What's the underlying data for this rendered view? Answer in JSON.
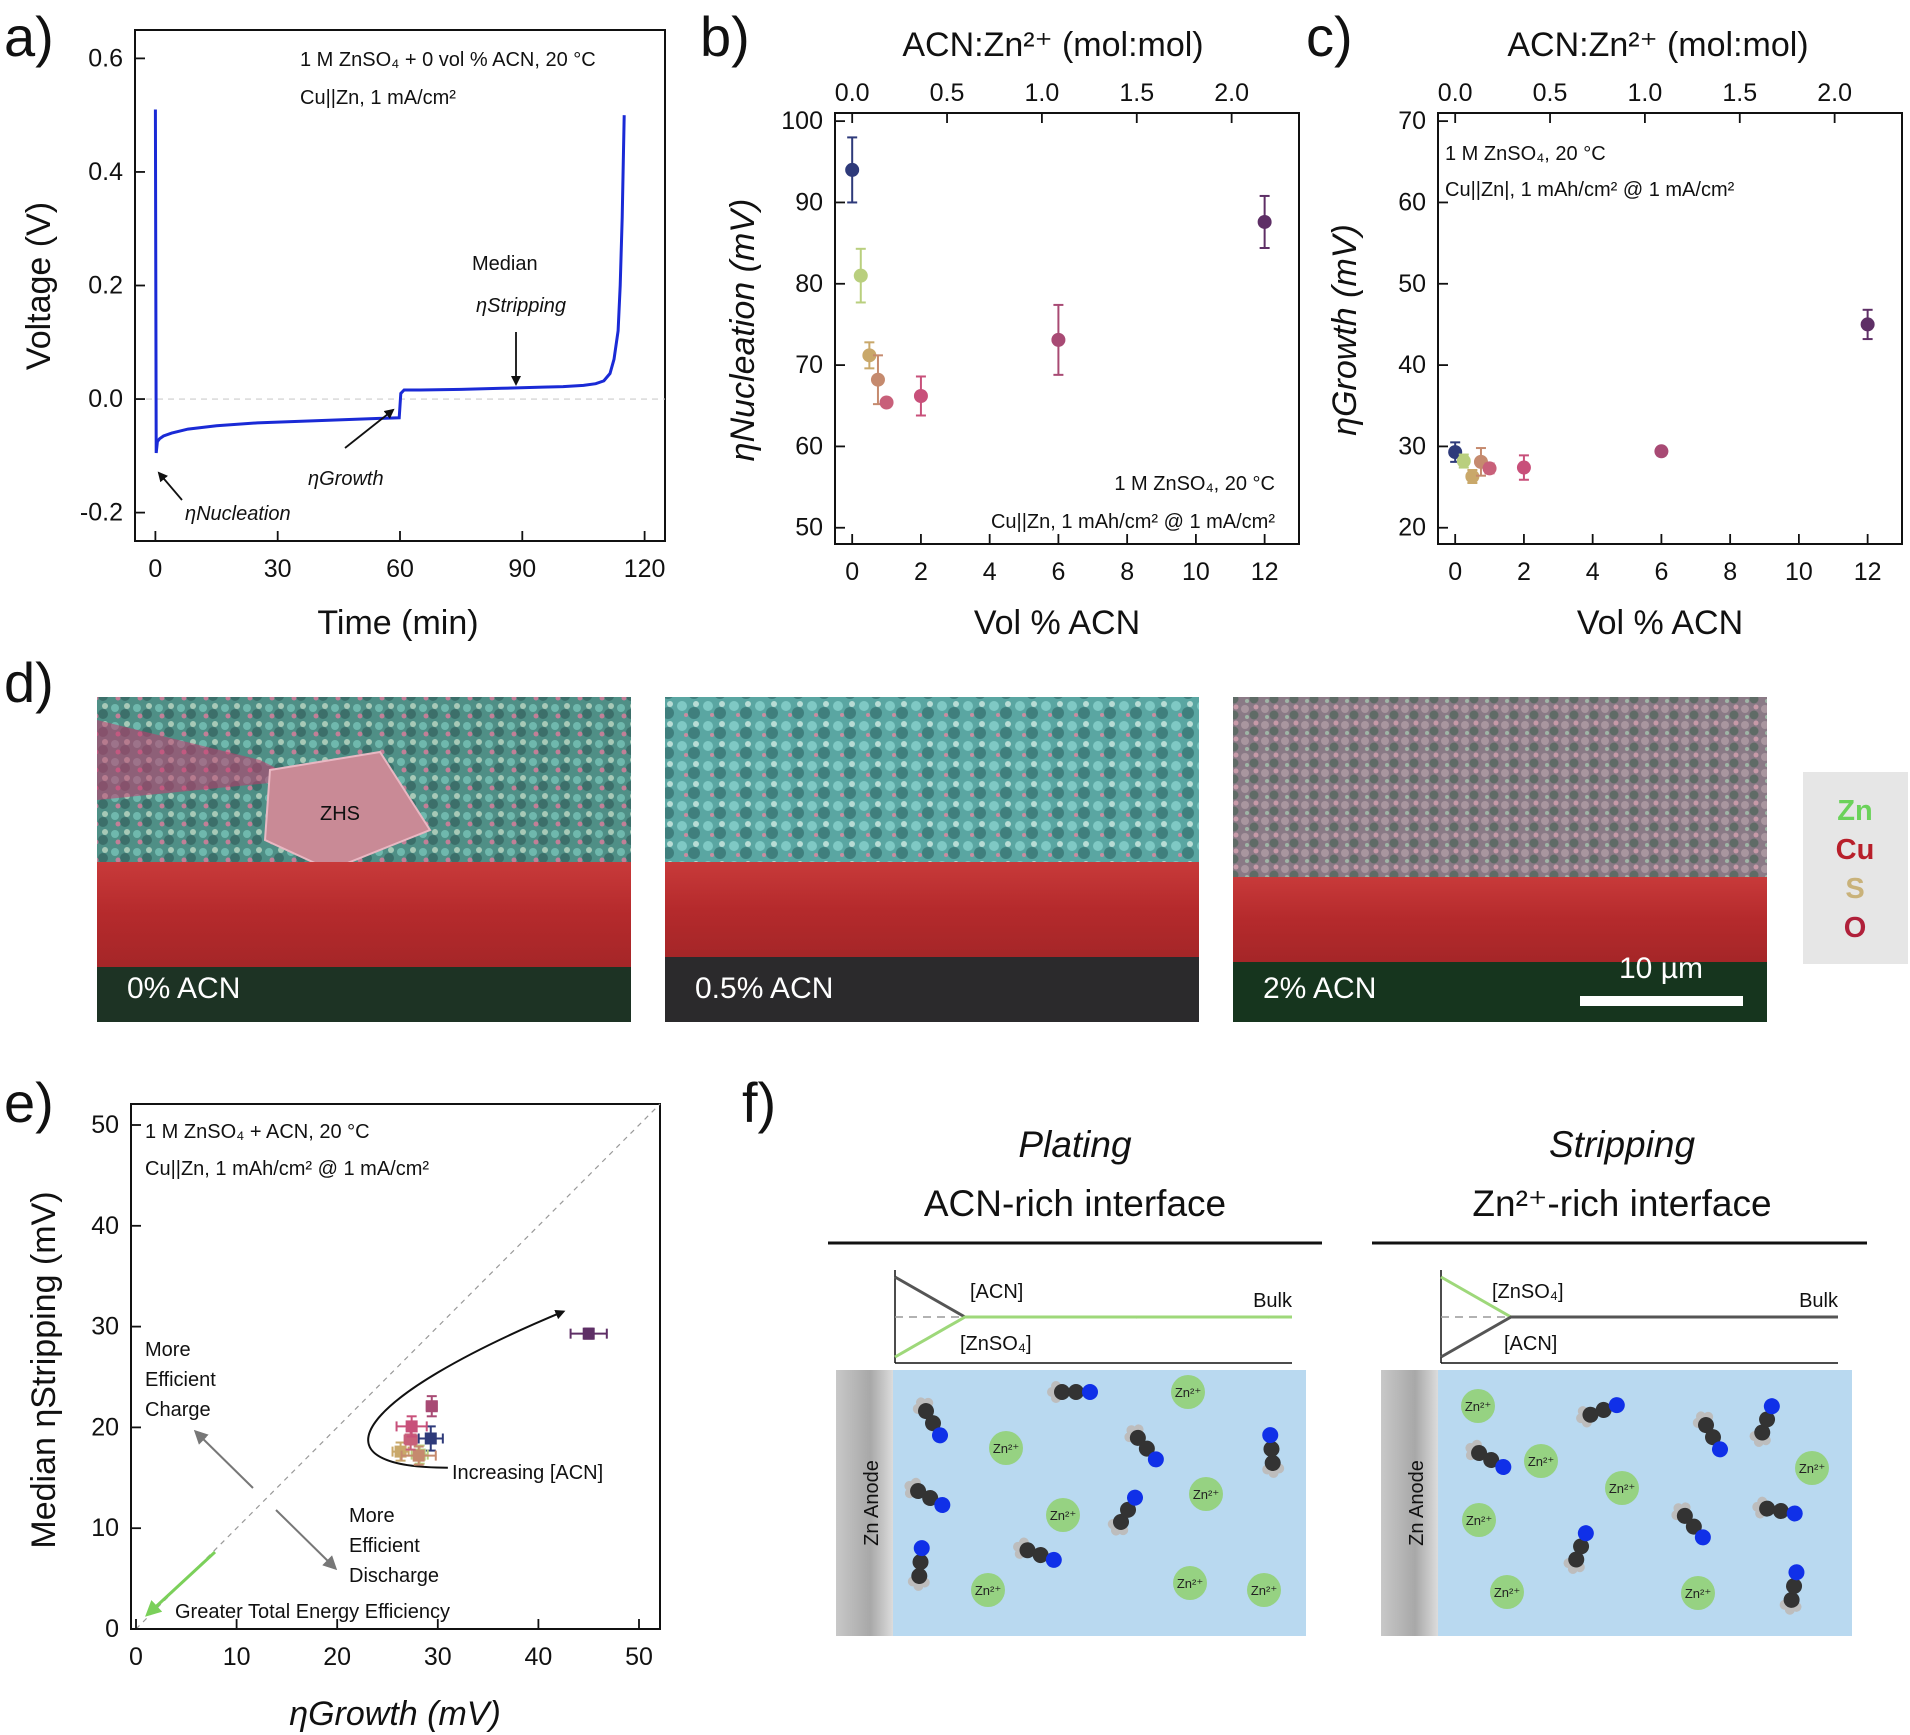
{
  "colors": {
    "curve": "#1a2ad6",
    "acn0": "#2e3a7a",
    "acn025": "#b9cf7e",
    "acn05": "#c9a86a",
    "acn075": "#c58a6e",
    "acn1": "#c8607a",
    "acn2": "#c8507a",
    "acn6": "#a84a74",
    "acn12": "#5e2f66",
    "green": "#7bd05a",
    "blue": "#1030e8",
    "sem_bg": "#e8e8e8",
    "interface_bg": "#b9d9f0"
  },
  "panels": {
    "a": {
      "letter": "a)",
      "xlabel": "Time (min)",
      "ylabel": "Voltage (V)",
      "xticks": [
        "0",
        "30",
        "60",
        "90",
        "120"
      ],
      "yticks": [
        "-0.2",
        "0.0",
        "0.2",
        "0.4",
        "0.6"
      ],
      "note1": "1 M ZnSO₄ + 0 vol % ACN, 20 °C",
      "note2": "Cu||Zn, 1 mA/cm²",
      "median_label": "Median",
      "eta_stripping": "ηStripping",
      "eta_growth": "ηGrowth",
      "eta_nucleation": "ηNucleation"
    },
    "b": {
      "letter": "b)",
      "top_xlabel": "ACN:Zn²⁺ (mol:mol)",
      "top_xticks": [
        "0.0",
        "0.5",
        "1.0",
        "1.5",
        "2.0"
      ],
      "xlabel": "Vol % ACN",
      "ylabel": "ηNucleation (mV)",
      "xticks": [
        "0",
        "2",
        "4",
        "6",
        "8",
        "10",
        "12"
      ],
      "yticks": [
        "50",
        "60",
        "70",
        "80",
        "90",
        "100"
      ],
      "note1": "1 M ZnSO₄, 20 °C",
      "note2": "Cu||Zn, 1 mAh/cm² @ 1 mA/cm²"
    },
    "c": {
      "letter": "c)",
      "top_xlabel": "ACN:Zn²⁺ (mol:mol)",
      "top_xticks": [
        "0.0",
        "0.5",
        "1.0",
        "1.5",
        "2.0"
      ],
      "xlabel": "Vol % ACN",
      "ylabel": "ηGrowth (mV)",
      "xticks": [
        "0",
        "2",
        "4",
        "6",
        "8",
        "10",
        "12"
      ],
      "yticks": [
        "20",
        "30",
        "40",
        "50",
        "60",
        "70"
      ],
      "note1": "1 M ZnSO₄, 20 °C",
      "note2": "Cu||Zn|, 1 mAh/cm² @ 1 mA/cm²"
    },
    "d": {
      "letter": "d)",
      "images": [
        "0% ACN",
        "0.5% ACN",
        "2% ACN"
      ],
      "zhs": "ZHS",
      "scale_bar": "10 µm",
      "legend": [
        "Zn",
        "Cu",
        "S",
        "O"
      ]
    },
    "e": {
      "letter": "e)",
      "xlabel": "ηGrowth (mV)",
      "ylabel": "Median ηStripping (mV)",
      "xticks": [
        "0",
        "10",
        "20",
        "30",
        "40",
        "50"
      ],
      "yticks": [
        "0",
        "10",
        "20",
        "30",
        "40",
        "50"
      ],
      "note1": "1 M ZnSO₄ + ACN, 20 °C",
      "note2": "Cu||Zn, 1 mAh/cm² @ 1 mA/cm²",
      "more_charge": [
        "More",
        "Efficient",
        "Charge"
      ],
      "more_discharge": [
        "More",
        "Efficient",
        "Discharge"
      ],
      "increasing": "Increasing [ACN]",
      "greater": "Greater Total Energy Efficiency"
    },
    "f": {
      "letter": "f)",
      "left_mode": "Plating",
      "left_title": "ACN-rich interface",
      "right_mode": "Stripping",
      "right_title": "Zn²⁺-rich interface",
      "acn": "[ACN]",
      "znso4": "[ZnSO₄]",
      "bulk": "Bulk",
      "anode": "Zn Anode",
      "zn_ion": "Zn²⁺"
    }
  },
  "chart_data": [
    {
      "panel": "a",
      "type": "line",
      "xlabel": "Time (min)",
      "ylabel": "Voltage (V)",
      "xlim": [
        -5,
        125
      ],
      "ylim": [
        -0.25,
        0.65
      ],
      "series": [
        {
          "x": [
            0,
            0.2,
            0.5,
            1,
            2,
            4,
            8,
            15,
            25,
            40,
            55,
            59.8,
            60.2,
            61,
            65,
            75,
            85,
            95,
            100,
            105,
            108,
            110,
            111.5,
            112.5,
            113.5,
            114,
            114.5,
            115
          ],
          "y": [
            0.51,
            -0.095,
            -0.075,
            -0.07,
            -0.065,
            -0.06,
            -0.053,
            -0.047,
            -0.042,
            -0.038,
            -0.034,
            -0.033,
            0.01,
            0.016,
            0.016,
            0.017,
            0.019,
            0.021,
            0.022,
            0.024,
            0.027,
            0.032,
            0.045,
            0.07,
            0.12,
            0.2,
            0.32,
            0.5
          ]
        }
      ]
    },
    {
      "panel": "b",
      "type": "scatter",
      "xlabel": "Vol % ACN",
      "ylabel": "ηNucleation (mV)",
      "top_xlabel": "ACN:Zn²⁺ (mol:mol)",
      "xlim": [
        -0.5,
        13
      ],
      "ylim": [
        48,
        101
      ],
      "points": [
        {
          "x": 0,
          "y": 94,
          "err": 4,
          "color": "acn0"
        },
        {
          "x": 0.25,
          "y": 81,
          "err": 3.3,
          "color": "acn025"
        },
        {
          "x": 0.5,
          "y": 71.2,
          "err": 1.6,
          "color": "acn05"
        },
        {
          "x": 0.75,
          "y": 68.2,
          "err": 3,
          "color": "acn075"
        },
        {
          "x": 1,
          "y": 65.4,
          "err": 0,
          "color": "acn1"
        },
        {
          "x": 2,
          "y": 66.2,
          "err": 2.4,
          "color": "acn2"
        },
        {
          "x": 6,
          "y": 73.1,
          "err": 4.3,
          "color": "acn6"
        },
        {
          "x": 12,
          "y": 87.6,
          "err": 3.2,
          "color": "acn12"
        }
      ]
    },
    {
      "panel": "c",
      "type": "scatter",
      "xlabel": "Vol % ACN",
      "ylabel": "ηGrowth (mV)",
      "top_xlabel": "ACN:Zn²⁺ (mol:mol)",
      "xlim": [
        -0.5,
        13
      ],
      "ylim": [
        18,
        71
      ],
      "points": [
        {
          "x": 0,
          "y": 29.3,
          "err": 1.2,
          "color": "acn0"
        },
        {
          "x": 0.25,
          "y": 28.2,
          "err": 0.8,
          "color": "acn025"
        },
        {
          "x": 0.5,
          "y": 26.3,
          "err": 0.8,
          "color": "acn05"
        },
        {
          "x": 0.75,
          "y": 28.1,
          "err": 1.7,
          "color": "acn075"
        },
        {
          "x": 1,
          "y": 27.3,
          "err": 0.6,
          "color": "acn1"
        },
        {
          "x": 2,
          "y": 27.4,
          "err": 1.5,
          "color": "acn2"
        },
        {
          "x": 6,
          "y": 29.4,
          "err": 0.5,
          "color": "acn6"
        },
        {
          "x": 12,
          "y": 45,
          "err": 1.8,
          "color": "acn12"
        }
      ]
    },
    {
      "panel": "e",
      "type": "scatter",
      "xlabel": "ηGrowth (mV)",
      "ylabel": "Median ηStripping (mV)",
      "xlim": [
        0,
        50
      ],
      "ylim": [
        0,
        50
      ],
      "points": [
        {
          "x": 29.3,
          "y": 18.9,
          "xerr": 1.2,
          "yerr": 1.2,
          "color": "acn0"
        },
        {
          "x": 28.2,
          "y": 17.3,
          "xerr": 0.8,
          "yerr": 0.9,
          "color": "acn025"
        },
        {
          "x": 26.3,
          "y": 17.6,
          "xerr": 0.8,
          "yerr": 0.9,
          "color": "acn05"
        },
        {
          "x": 28.1,
          "y": 17.2,
          "xerr": 1.7,
          "yerr": 0.9,
          "color": "acn075"
        },
        {
          "x": 27.3,
          "y": 18.8,
          "xerr": 0.6,
          "yerr": 1.0,
          "color": "acn1"
        },
        {
          "x": 27.4,
          "y": 20.1,
          "xerr": 1.5,
          "yerr": 1.0,
          "color": "acn2"
        },
        {
          "x": 29.4,
          "y": 22.1,
          "xerr": 0.5,
          "yerr": 1.0,
          "color": "acn6"
        },
        {
          "x": 45.0,
          "y": 29.3,
          "xerr": 1.8,
          "yerr": 0.5,
          "color": "acn12"
        }
      ]
    }
  ]
}
